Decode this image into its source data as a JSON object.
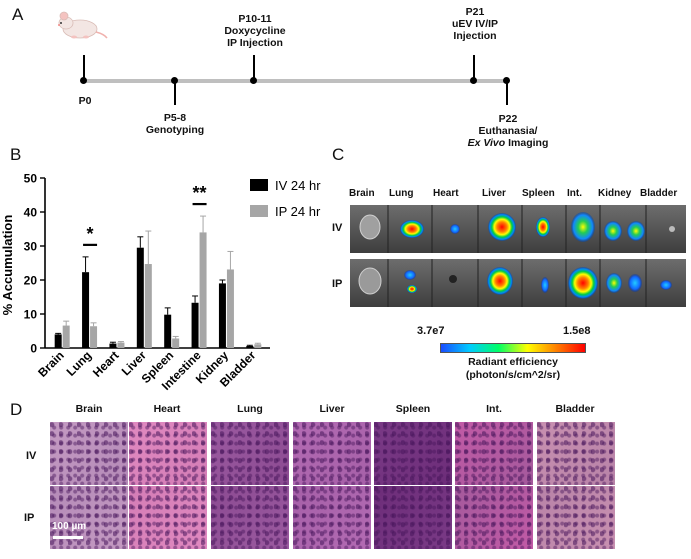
{
  "panel_a": {
    "letter": "A",
    "events": [
      {
        "id": "p0",
        "lines": [
          "P0"
        ],
        "bold": true,
        "side": "below",
        "mark_x": 0.0
      },
      {
        "id": "p5",
        "lines": [
          "P5-8",
          "Genotyping"
        ],
        "bold": false,
        "side": "below",
        "mark_x": 0.0
      },
      {
        "id": "p10",
        "lines": [
          "P10-11",
          "Doxycycline",
          "IP Injection"
        ],
        "bold": false,
        "side": "above",
        "mark_x": 0.0
      },
      {
        "id": "p21",
        "lines": [
          "P21",
          "uEV IV/IP",
          "Injection"
        ],
        "bold": false,
        "side": "above",
        "mark_x": 0.0
      },
      {
        "id": "p22",
        "lines": [
          "P22",
          "Euthanasia/",
          "Ex Vivo Imaging"
        ],
        "bold": false,
        "side": "below",
        "mark_x": 0.0
      }
    ]
  },
  "panel_b": {
    "letter": "B",
    "significance": [
      "*",
      "**"
    ]
  },
  "chart_data": {
    "type": "bar",
    "title": "",
    "xlabel": "",
    "ylabel": "% Accumulation",
    "ylim": [
      0,
      50
    ],
    "yticks": [
      "0",
      "10",
      "20",
      "30",
      "40",
      "50"
    ],
    "categories": [
      "Brain",
      "Lung",
      "Heart",
      "Liver",
      "Spleen",
      "Intestine",
      "Kidney",
      "Bladder"
    ],
    "series": [
      {
        "name": "IV 24 hr",
        "color": "#000000",
        "values": [
          4,
          22.3,
          1.3,
          29.5,
          9.8,
          13.3,
          19,
          0.6
        ],
        "errors": [
          0.3,
          4.5,
          0.4,
          3.2,
          2,
          2,
          1,
          0.2
        ]
      },
      {
        "name": "IP 24 hr",
        "color": "#a6a6a6",
        "values": [
          6.6,
          6.4,
          1.6,
          24.7,
          2.8,
          34,
          23.1,
          1.1
        ],
        "errors": [
          1.3,
          1,
          0.3,
          9.7,
          0.6,
          4.8,
          5.3,
          0.3
        ]
      }
    ],
    "legend_position": "top-right",
    "significance": [
      {
        "category_index": 1,
        "label": "*"
      },
      {
        "category_index": 5,
        "label": "**"
      }
    ]
  },
  "panel_c": {
    "letter": "C",
    "organs": [
      "Brain",
      "Lung",
      "Heart",
      "Liver",
      "Spleen",
      "Int.",
      "Kidney",
      "Bladder"
    ],
    "rows": [
      "IV",
      "IP"
    ],
    "colorbar_min": "3.7e7",
    "colorbar_max": "1.5e8",
    "colorbar_label_1": "Radiant efficiency",
    "colorbar_label_2": "(photon/s/cm^2/sr)"
  },
  "panel_d": {
    "letter": "D",
    "columns": [
      "Brain",
      "Heart",
      "Lung",
      "Liver",
      "Spleen",
      "Int.",
      "Bladder"
    ],
    "rows": [
      "IV",
      "IP"
    ],
    "scale_bar": "100 µm"
  }
}
